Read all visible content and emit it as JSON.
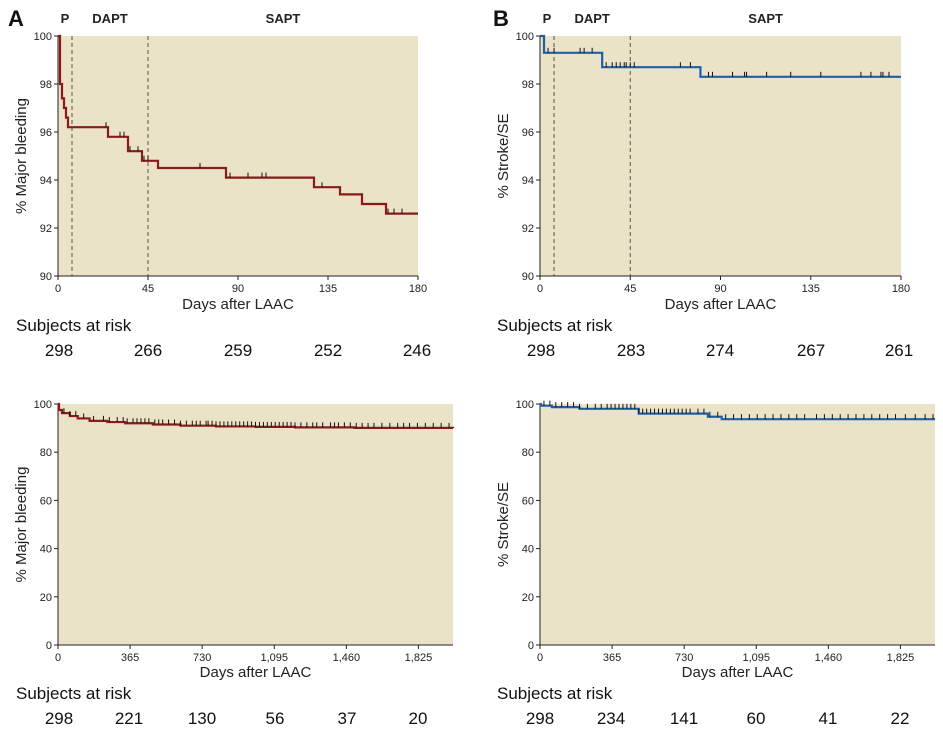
{
  "chart_data": [
    {
      "type": "line",
      "panel_label": "A",
      "xlabel": "Days after LAAC",
      "ylabel": "% Major bleeding",
      "xlim": [
        0,
        180
      ],
      "ylim": [
        90,
        100
      ],
      "xticks": [
        0,
        45,
        90,
        135,
        180
      ],
      "xtick_labels": [
        "0",
        "45",
        "90",
        "135",
        "180"
      ],
      "yticks": [
        90,
        92,
        94,
        96,
        98,
        100
      ],
      "ytick_labels": [
        "90",
        "92",
        "94",
        "96",
        "98",
        "100"
      ],
      "phases": [
        {
          "label": "P",
          "start": 0,
          "end": 7
        },
        {
          "label": "DAPT",
          "start": 7,
          "end": 45
        },
        {
          "label": "SAPT",
          "start": 45,
          "end": 180
        }
      ],
      "color": "#8b1a1a",
      "series": [
        {
          "x": [
            0,
            1,
            2,
            3,
            4,
            5,
            6,
            25,
            35,
            42,
            50,
            84,
            128,
            141,
            152,
            164,
            180
          ],
          "y": [
            100,
            98.0,
            97.4,
            97.0,
            96.6,
            96.2,
            96.2,
            95.8,
            95.2,
            94.8,
            94.5,
            94.1,
            93.7,
            93.4,
            93.0,
            92.6,
            92.6
          ]
        }
      ],
      "censor_x": [
        24,
        31,
        33,
        36,
        40,
        43,
        45,
        71,
        86,
        95,
        102,
        104,
        132,
        165,
        168,
        172
      ],
      "risk_title": "Subjects at risk",
      "risk_values": [
        "298",
        "266",
        "259",
        "252",
        "246"
      ]
    },
    {
      "type": "line",
      "panel_label": "B",
      "xlabel": "Days after LAAC",
      "ylabel": "% Stroke/SE",
      "xlim": [
        0,
        180
      ],
      "ylim": [
        90,
        100
      ],
      "xticks": [
        0,
        45,
        90,
        135,
        180
      ],
      "xtick_labels": [
        "0",
        "45",
        "90",
        "135",
        "180"
      ],
      "yticks": [
        90,
        92,
        94,
        96,
        98,
        100
      ],
      "ytick_labels": [
        "90",
        "92",
        "94",
        "96",
        "98",
        "100"
      ],
      "phases": [
        {
          "label": "P",
          "start": 0,
          "end": 7
        },
        {
          "label": "DAPT",
          "start": 7,
          "end": 45
        },
        {
          "label": "SAPT",
          "start": 45,
          "end": 180
        }
      ],
      "color": "#1f5fa8",
      "series": [
        {
          "x": [
            0,
            2,
            28,
            31,
            80,
            180
          ],
          "y": [
            100,
            99.3,
            99.3,
            98.7,
            98.3,
            98.3
          ]
        }
      ],
      "censor_x": [
        4,
        7,
        20,
        22,
        26,
        33,
        36,
        38,
        40,
        42,
        43,
        45,
        47,
        70,
        75,
        84,
        86,
        96,
        102,
        103,
        113,
        125,
        140,
        160,
        165,
        170,
        171,
        174
      ],
      "risk_title": "Subjects at risk",
      "risk_values": [
        "298",
        "283",
        "274",
        "267",
        "261"
      ]
    },
    {
      "type": "line",
      "panel_label": "",
      "xlabel": "Days after LAAC",
      "ylabel": "% Major bleeding",
      "xlim": [
        0,
        2000
      ],
      "ylim": [
        0,
        100
      ],
      "xticks": [
        0,
        365,
        730,
        1095,
        1460,
        1825
      ],
      "xtick_labels": [
        "0",
        "365",
        "730",
        "1,095",
        "1,460",
        "1,825"
      ],
      "yticks": [
        0,
        20,
        40,
        60,
        80,
        100
      ],
      "ytick_labels": [
        "0",
        "20",
        "40",
        "60",
        "80",
        "100"
      ],
      "phases": [],
      "color": "#8b1a1a",
      "series": [
        {
          "x": [
            0,
            5,
            20,
            60,
            100,
            160,
            250,
            340,
            480,
            620,
            800,
            1000,
            1200,
            1500,
            2000
          ],
          "y": [
            100,
            97.5,
            96.2,
            95.0,
            94.0,
            93.0,
            92.5,
            92.0,
            91.5,
            91.0,
            90.7,
            90.5,
            90.3,
            90.1,
            90.0
          ]
        }
      ],
      "censor_x": [
        30,
        60,
        90,
        130,
        180,
        230,
        260,
        300,
        330,
        350,
        380,
        400,
        420,
        440,
        460,
        490,
        510,
        530,
        560,
        590,
        620,
        650,
        680,
        700,
        720,
        750,
        760,
        780,
        800,
        820,
        840,
        860,
        880,
        900,
        920,
        940,
        960,
        980,
        1000,
        1020,
        1040,
        1060,
        1080,
        1100,
        1120,
        1140,
        1160,
        1180,
        1200,
        1230,
        1260,
        1290,
        1310,
        1340,
        1380,
        1400,
        1420,
        1450,
        1480,
        1510,
        1540,
        1570,
        1600,
        1640,
        1680,
        1720,
        1750,
        1780,
        1820,
        1860,
        1900,
        1940,
        1980
      ],
      "risk_title": "Subjects at risk",
      "risk_values": [
        "298",
        "221",
        "130",
        "56",
        "37",
        "20"
      ]
    },
    {
      "type": "line",
      "panel_label": "",
      "xlabel": "Days after LAAC",
      "ylabel": "% Stroke/SE",
      "xlim": [
        0,
        2000
      ],
      "ylim": [
        0,
        100
      ],
      "xticks": [
        0,
        365,
        730,
        1095,
        1460,
        1825
      ],
      "xtick_labels": [
        "0",
        "365",
        "730",
        "1,095",
        "1,460",
        "1,825"
      ],
      "yticks": [
        0,
        20,
        40,
        60,
        80,
        100
      ],
      "ytick_labels": [
        "0",
        "20",
        "40",
        "60",
        "80",
        "100"
      ],
      "phases": [],
      "color": "#1f5fa8",
      "series": [
        {
          "x": [
            0,
            5,
            60,
            200,
            500,
            850,
            920,
            2000
          ],
          "y": [
            100,
            99.3,
            98.7,
            98.0,
            96.0,
            94.7,
            93.7,
            93.7
          ]
        }
      ],
      "censor_x": [
        20,
        50,
        80,
        110,
        140,
        170,
        200,
        240,
        280,
        310,
        340,
        360,
        380,
        400,
        420,
        440,
        460,
        480,
        500,
        520,
        540,
        560,
        580,
        600,
        620,
        640,
        660,
        680,
        700,
        720,
        740,
        760,
        800,
        830,
        860,
        900,
        940,
        980,
        1020,
        1060,
        1100,
        1140,
        1180,
        1220,
        1260,
        1300,
        1340,
        1400,
        1440,
        1480,
        1520,
        1560,
        1600,
        1640,
        1680,
        1720,
        1760,
        1800,
        1850,
        1900,
        1950,
        1990
      ],
      "risk_title": "Subjects at risk",
      "risk_values": [
        "298",
        "234",
        "141",
        "60",
        "41",
        "22"
      ]
    }
  ]
}
